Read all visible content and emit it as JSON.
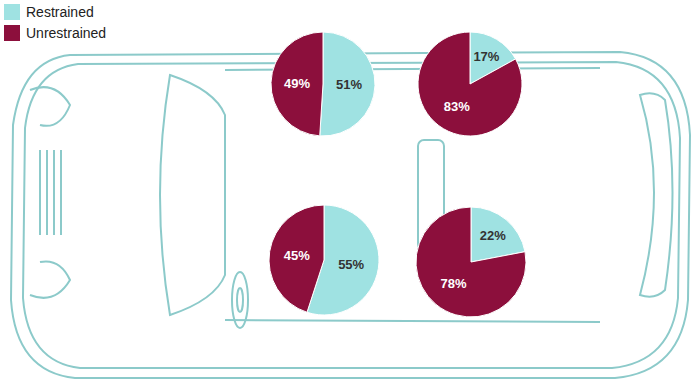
{
  "chart_data": [
    {
      "type": "pie",
      "categories": [
        "Restrained",
        "Unrestrained"
      ],
      "values": [
        51,
        49
      ],
      "value_labels": [
        "51%",
        "49%"
      ],
      "colors": [
        "#9fe2e2",
        "#8c0f3c"
      ],
      "data_labels": true,
      "legend": "upper left"
    },
    {
      "type": "pie",
      "categories": [
        "Restrained",
        "Unrestrained"
      ],
      "values": [
        17,
        83
      ],
      "value_labels": [
        "17%",
        "83%"
      ],
      "colors": [
        "#9fe2e2",
        "#8c0f3c"
      ],
      "data_labels": true
    },
    {
      "type": "pie",
      "categories": [
        "Restrained",
        "Unrestrained"
      ],
      "values": [
        55,
        45
      ],
      "value_labels": [
        "55%",
        "45%"
      ],
      "colors": [
        "#9fe2e2",
        "#8c0f3c"
      ],
      "data_labels": true
    },
    {
      "type": "pie",
      "categories": [
        "Restrained",
        "Unrestrained"
      ],
      "values": [
        22,
        78
      ],
      "value_labels": [
        "22%",
        "78%"
      ],
      "colors": [
        "#9fe2e2",
        "#8c0f3c"
      ],
      "data_labels": true
    }
  ]
}
